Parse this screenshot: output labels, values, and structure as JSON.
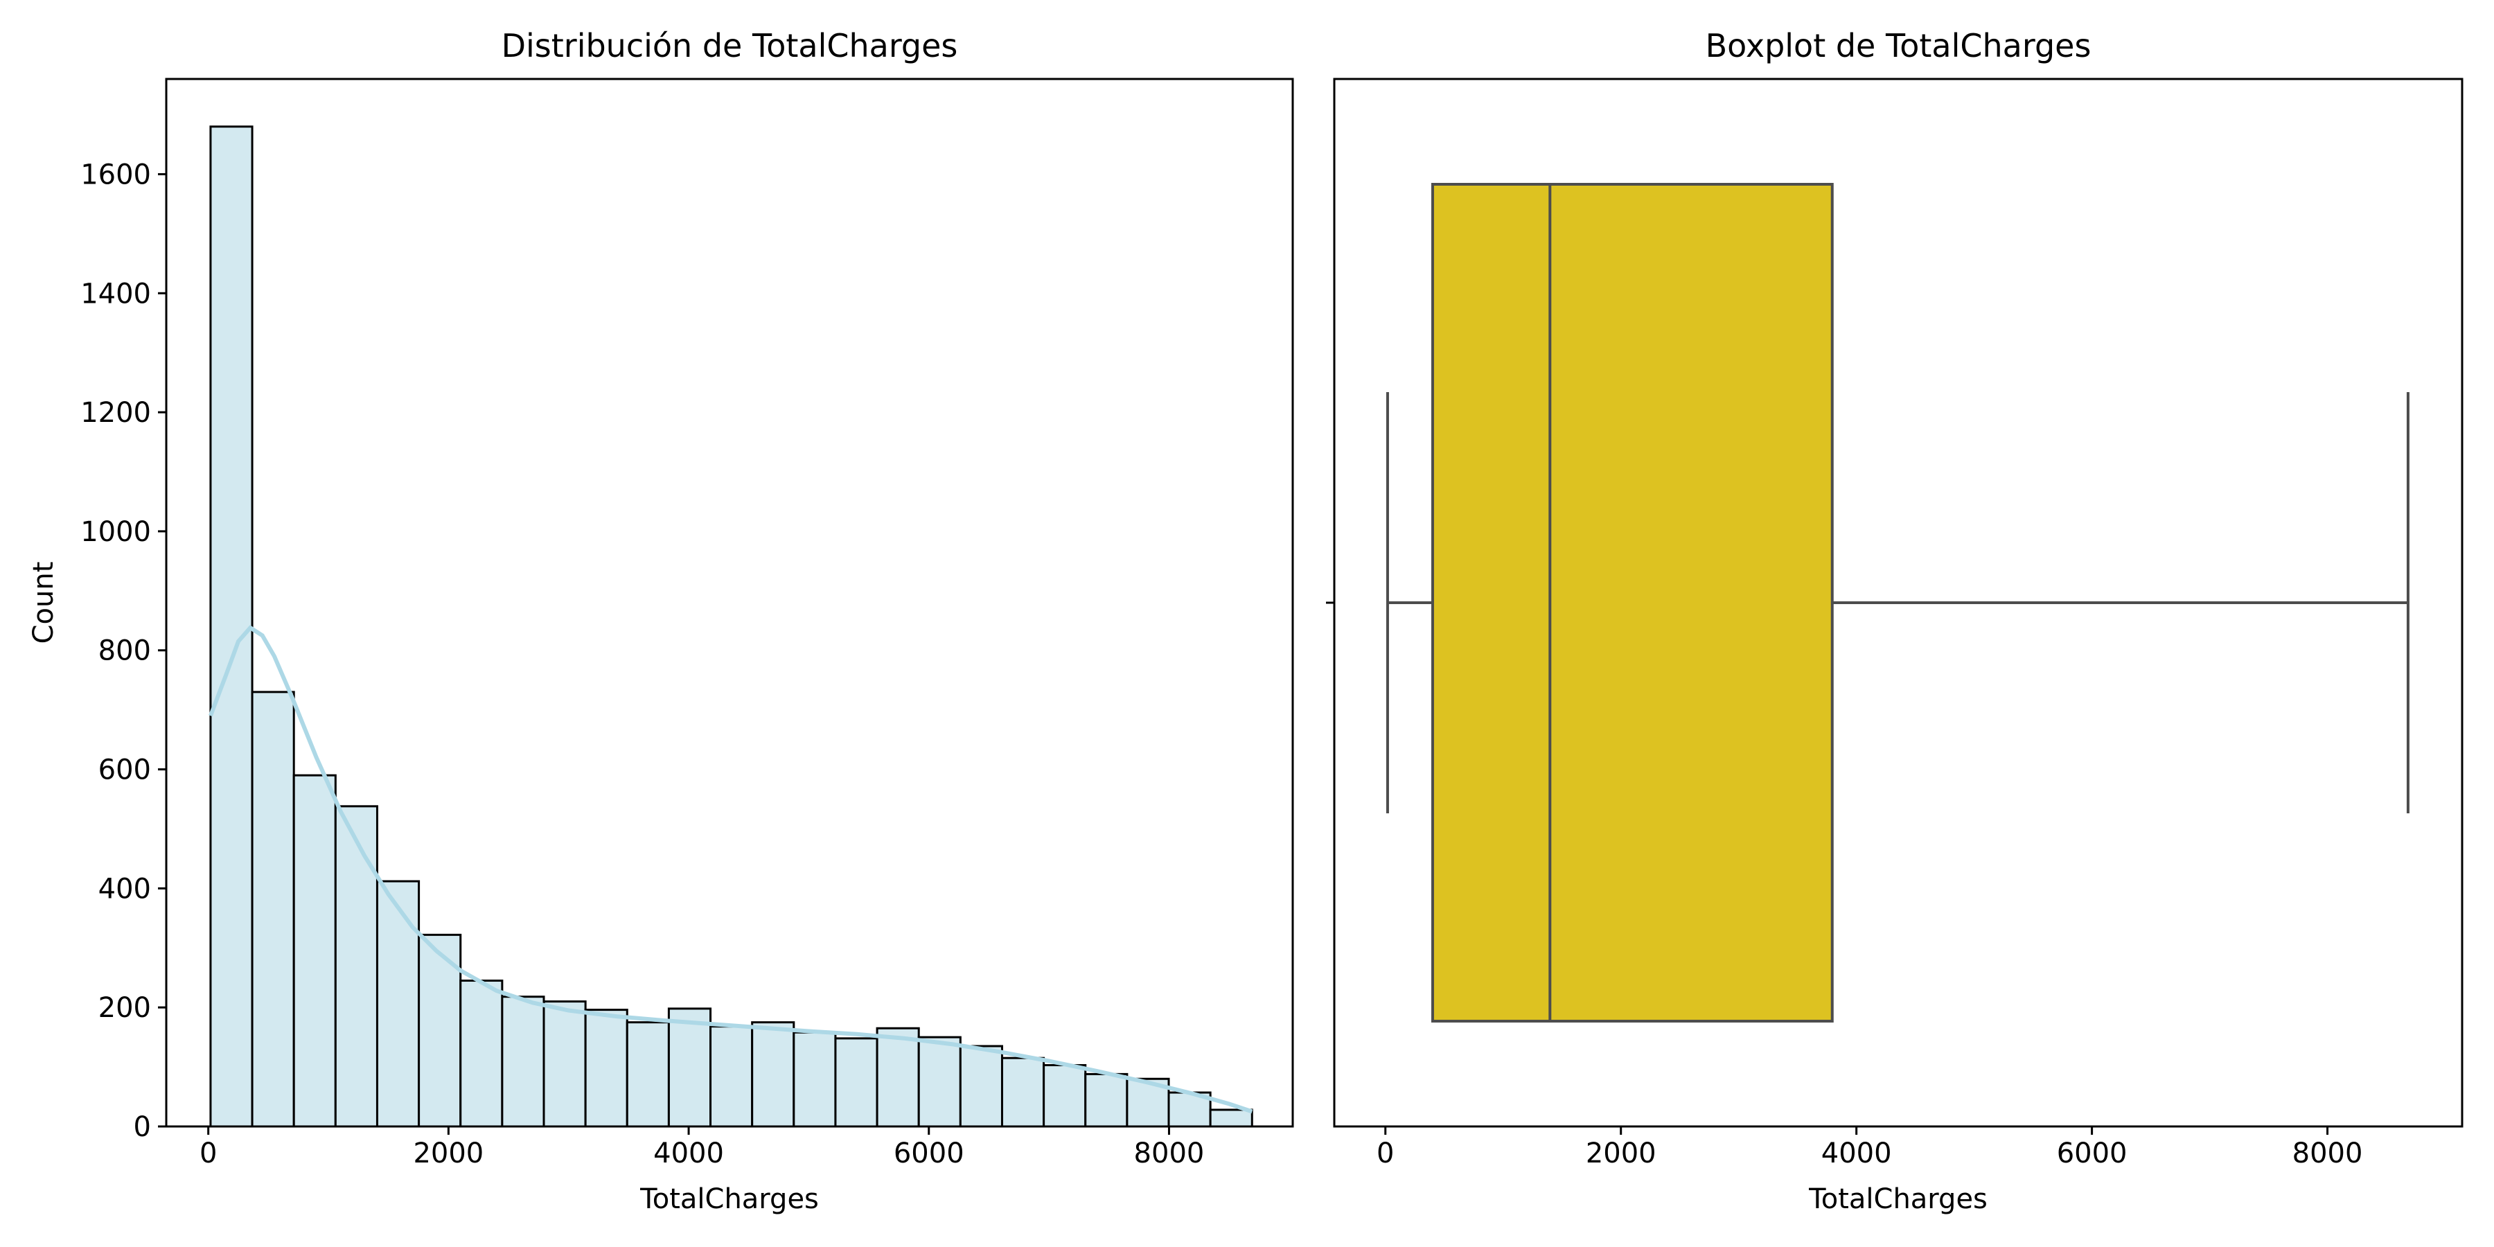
{
  "chart_data": [
    {
      "type": "bar",
      "title": "Distribución de TotalCharges",
      "xlabel": "TotalCharges",
      "ylabel": "Count",
      "xlim": [
        -350,
        9030
      ],
      "ylim": [
        0,
        1760
      ],
      "xticks": [
        0,
        2000,
        4000,
        6000,
        8000
      ],
      "yticks": [
        0,
        200,
        400,
        600,
        800,
        1000,
        1200,
        1400,
        1600
      ],
      "bin_edges": [
        18.8,
        365.7,
        712.6,
        1059.5,
        1406.4,
        1753.3,
        2100.2,
        2447.1,
        2794.0,
        3140.9,
        3487.8,
        3834.7,
        4181.6,
        4528.5,
        4875.4,
        5222.3,
        5569.2,
        5916.1,
        6263.0,
        6609.9,
        6956.8,
        7303.7,
        7650.6,
        7997.5,
        8344.4,
        8691.3
      ],
      "values": [
        1680,
        730,
        590,
        538,
        412,
        322,
        245,
        218,
        210,
        196,
        175,
        198,
        168,
        175,
        158,
        148,
        165,
        150,
        135,
        115,
        103,
        88,
        80,
        57,
        28
      ],
      "bar_color": "#d3e9f0",
      "edge_color": "#000000",
      "kde_color": "#add8e6",
      "kde": {
        "x": [
          18.8,
          150,
          250,
          350,
          450,
          550,
          700,
          900,
          1100,
          1300,
          1500,
          1700,
          1900,
          2100,
          2400,
          2700,
          3000,
          3400,
          3800,
          4200,
          4600,
          5000,
          5400,
          5800,
          6200,
          6600,
          7000,
          7400,
          7800,
          8200,
          8500,
          8691.3
        ],
        "y": [
          690,
          760,
          815,
          838,
          825,
          790,
          720,
          620,
          530,
          455,
          390,
          335,
          295,
          262,
          228,
          208,
          195,
          185,
          178,
          172,
          166,
          160,
          155,
          148,
          138,
          125,
          110,
          93,
          75,
          55,
          38,
          25
        ]
      },
      "grid": false,
      "legend": "none"
    },
    {
      "type": "box",
      "title": "Boxplot de TotalCharges",
      "xlabel": "TotalCharges",
      "xlim": [
        -434,
        9144
      ],
      "xticks": [
        0,
        2000,
        4000,
        6000,
        8000
      ],
      "min": 18.8,
      "q1": 401.4,
      "median": 1397.5,
      "q3": 3794.7,
      "max": 8684.8,
      "box_color": "#ddc221",
      "line_color": "#4d4d4d",
      "grid": false,
      "legend": "none"
    }
  ]
}
